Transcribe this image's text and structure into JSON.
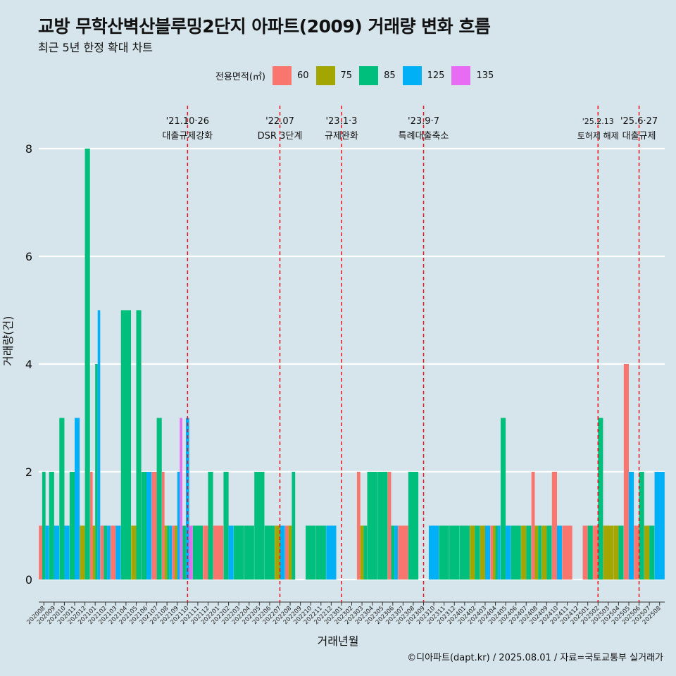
{
  "title": "교방 무학산벽산블루밍2단지 아파트(2009) 거래량 변화 흐름",
  "subtitle": "최근 5년 한정 확대 차트",
  "caption": "©디아파트(dapt.kr) / 2025.08.01 / 자료=국토교통부 실거래가",
  "chart_data": {
    "type": "bar",
    "xlabel": "거래년월",
    "ylabel": "거래량(건)",
    "ylim": [
      0,
      8.5
    ],
    "yticks": [
      0,
      2,
      4,
      6,
      8
    ],
    "grid": true,
    "legend": {
      "title": "전용면적(㎡)",
      "placement": "top",
      "entries": [
        {
          "name": "60",
          "color": "#f8766d"
        },
        {
          "name": "75",
          "color": "#a3a500"
        },
        {
          "name": "85",
          "color": "#00bf7d"
        },
        {
          "name": "125",
          "color": "#00b0f6"
        },
        {
          "name": "135",
          "color": "#e76bf3"
        }
      ]
    },
    "categories": [
      "202008",
      "202009",
      "202010",
      "202011",
      "202012",
      "202101",
      "202102",
      "202103",
      "202104",
      "202105",
      "202106",
      "202107",
      "202108",
      "202109",
      "202110",
      "202111",
      "202112",
      "202201",
      "202202",
      "202203",
      "202204",
      "202205",
      "202206",
      "202207",
      "202208",
      "202209",
      "202210",
      "202211",
      "202212",
      "202301",
      "202302",
      "202303",
      "202304",
      "202305",
      "202306",
      "202307",
      "202308",
      "202309",
      "202310",
      "202311",
      "202312",
      "202401",
      "202402",
      "202403",
      "202404",
      "202405",
      "202406",
      "202407",
      "202408",
      "202409",
      "202410",
      "202411",
      "202412",
      "202501",
      "202502",
      "202503",
      "202504",
      "202505",
      "202506",
      "202507",
      "202508"
    ],
    "series": [
      {
        "name": "60",
        "values": [
          1,
          0,
          0,
          0,
          0,
          2,
          1,
          1,
          0,
          0,
          0,
          2,
          2,
          1,
          0,
          0,
          1,
          1,
          0,
          0,
          0,
          0,
          0,
          0,
          1,
          0,
          0,
          0,
          0,
          0,
          0,
          2,
          0,
          0,
          2,
          1,
          0,
          0,
          0,
          0,
          0,
          0,
          0,
          0,
          1,
          0,
          0,
          0,
          2,
          0,
          2,
          1,
          0,
          1,
          1,
          0,
          0,
          4,
          1,
          0,
          0
        ]
      },
      {
        "name": "75",
        "values": [
          0,
          0,
          0,
          0,
          1,
          1,
          0,
          0,
          0,
          1,
          0,
          0,
          1,
          1,
          0,
          0,
          0,
          0,
          0,
          0,
          0,
          0,
          0,
          1,
          1,
          0,
          0,
          0,
          0,
          0,
          0,
          1,
          0,
          0,
          0,
          0,
          0,
          0,
          0,
          0,
          0,
          0,
          1,
          1,
          1,
          0,
          0,
          1,
          1,
          1,
          0,
          0,
          0,
          0,
          0,
          1,
          1,
          0,
          0,
          1,
          0
        ]
      },
      {
        "name": "85",
        "values": [
          2,
          2,
          3,
          2,
          8,
          4,
          1,
          0,
          5,
          5,
          2,
          3,
          1,
          0,
          1,
          1,
          2,
          0,
          2,
          1,
          1,
          2,
          1,
          0,
          2,
          0,
          1,
          1,
          0,
          0,
          0,
          1,
          2,
          2,
          1,
          0,
          2,
          0,
          0,
          1,
          1,
          1,
          1,
          0,
          1,
          3,
          1,
          1,
          1,
          1,
          0,
          0,
          0,
          1,
          3,
          0,
          1,
          0,
          2,
          1,
          0
        ]
      },
      {
        "name": "125",
        "values": [
          1,
          1,
          1,
          3,
          0,
          5,
          1,
          1,
          0,
          0,
          2,
          0,
          1,
          2,
          3,
          0,
          0,
          0,
          1,
          0,
          0,
          0,
          0,
          1,
          0,
          0,
          0,
          0,
          1,
          0,
          0,
          0,
          0,
          0,
          1,
          0,
          0,
          0,
          1,
          0,
          0,
          0,
          0,
          1,
          1,
          1,
          0,
          0,
          0,
          0,
          1,
          0,
          0,
          0,
          0,
          0,
          0,
          2,
          0,
          0,
          2
        ]
      },
      {
        "name": "135",
        "values": [
          0,
          0,
          0,
          0,
          0,
          0,
          0,
          0,
          0,
          0,
          0,
          0,
          0,
          3,
          1,
          0,
          0,
          0,
          0,
          0,
          0,
          0,
          0,
          0,
          0,
          0,
          0,
          0,
          0,
          0,
          0,
          0,
          0,
          0,
          0,
          0,
          0,
          0,
          0,
          0,
          0,
          0,
          0,
          0,
          0,
          0,
          0,
          0,
          0,
          0,
          0,
          0,
          0,
          0,
          0,
          0,
          0,
          0,
          0,
          0,
          0
        ]
      }
    ],
    "annotations": [
      {
        "month": "202110",
        "date": "'21.10·26",
        "text": "대출규제강화"
      },
      {
        "month": "202207",
        "date": "'22.07",
        "text": "DSR 3단계"
      },
      {
        "month": "202301",
        "date": "'23.1·3",
        "text": "규제완화"
      },
      {
        "month": "202309",
        "date": "'23.9·7",
        "text": "특례대출축소"
      },
      {
        "month": "202502",
        "date": "'25.2.13",
        "text": "토허제 해제"
      },
      {
        "month": "202506",
        "date": "'25.6·27",
        "text": "대출규제"
      }
    ]
  }
}
